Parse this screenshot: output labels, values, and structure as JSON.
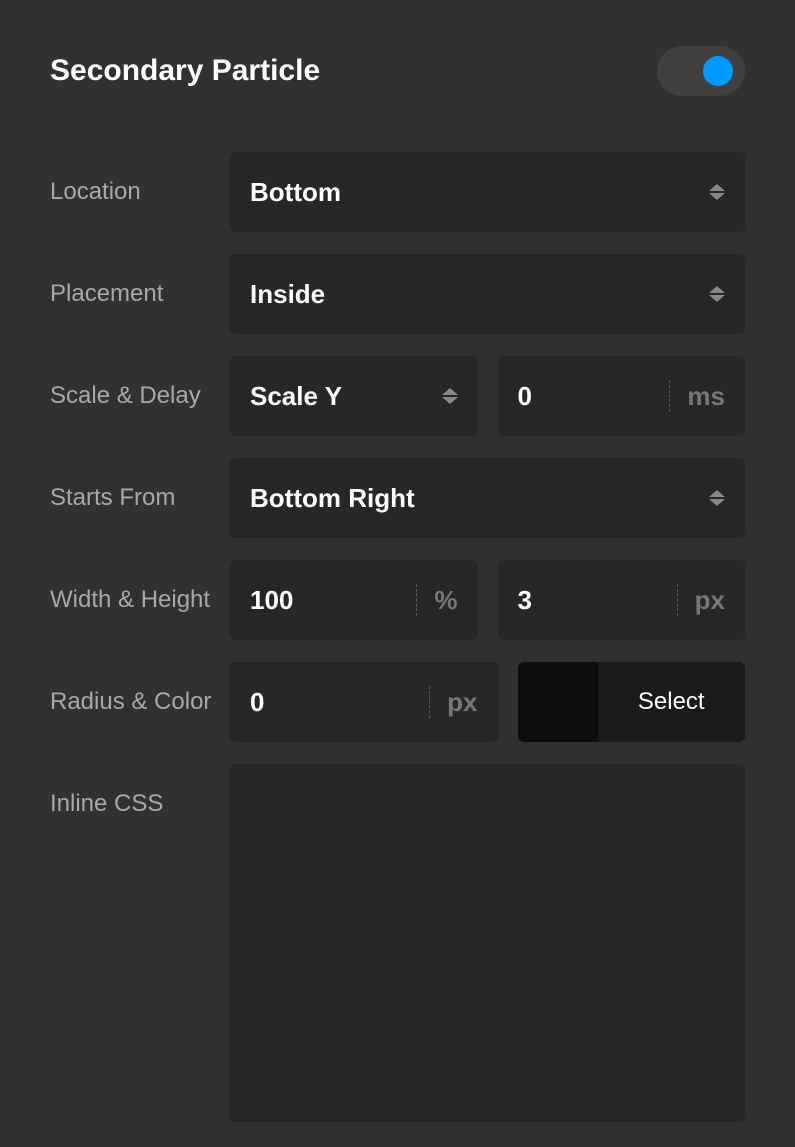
{
  "header": {
    "title": "Secondary Particle",
    "toggle_on": true
  },
  "fields": {
    "location": {
      "label": "Location",
      "value": "Bottom"
    },
    "placement": {
      "label": "Placement",
      "value": "Inside"
    },
    "scale_delay": {
      "label": "Scale & Delay",
      "scale_value": "Scale Y",
      "delay_value": "0",
      "delay_unit": "ms"
    },
    "starts_from": {
      "label": "Starts From",
      "value": "Bottom Right"
    },
    "width_height": {
      "label": "Width & Height",
      "width_value": "100",
      "width_unit": "%",
      "height_value": "3",
      "height_unit": "px"
    },
    "radius_color": {
      "label": "Radius & Color",
      "radius_value": "0",
      "radius_unit": "px",
      "color_swatch": "#0d0d0d",
      "color_label": "Select"
    },
    "inline_css": {
      "label": "Inline CSS",
      "value": ""
    }
  },
  "style": {
    "background": "#313131",
    "field_background": "#272727",
    "label_color": "#a8a8a8",
    "value_color": "#ffffff",
    "unit_color": "#777777",
    "toggle_track": "#404040",
    "toggle_knob": "#0099ff",
    "chevron_color": "#888888"
  }
}
